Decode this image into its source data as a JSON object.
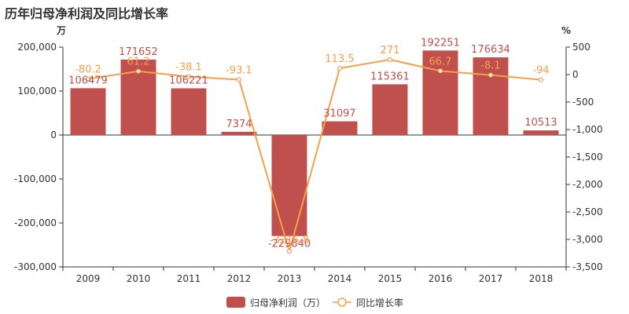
{
  "chart_data": {
    "type": "bar+line",
    "title": "历年归母净利润及同比增长率",
    "y_left_unit": "万",
    "y_right_unit": "%",
    "categories": [
      "2009",
      "2010",
      "2011",
      "2012",
      "2013",
      "2014",
      "2015",
      "2016",
      "2017",
      "2018"
    ],
    "y_left": {
      "min": -300000,
      "max": 200000,
      "ticks": [
        200000,
        100000,
        0,
        -100000,
        -200000,
        -300000
      ],
      "tick_labels": [
        "200,000",
        "100,000",
        "0",
        "-100,000",
        "-200,000",
        "-300,000"
      ]
    },
    "y_right": {
      "min": -3500,
      "max": 500,
      "ticks": [
        500,
        0,
        -500,
        -1000,
        -1500,
        -2000,
        -2500,
        -3000,
        -3500
      ],
      "tick_labels": [
        "500",
        "0",
        "-500",
        "-1,000",
        "-1,500",
        "-2,000",
        "-2,500",
        "-3,000",
        "-3,500"
      ]
    },
    "series": [
      {
        "name": "归母净利润（万）",
        "type": "bar",
        "color": "#c0504d",
        "values": [
          106479,
          171652,
          106221,
          7374,
          -229840,
          31097,
          115361,
          192251,
          176634,
          10513
        ],
        "labels": [
          "106479",
          "171652",
          "106221",
          "7374",
          "-229840",
          "31097",
          "115361",
          "192251",
          "176634",
          "10513"
        ]
      },
      {
        "name": "同比增长率",
        "type": "line",
        "color": "#f4a04b",
        "values": [
          -80.2,
          61.2,
          -38.1,
          -93.1,
          -3216.8,
          113.5,
          271,
          66.7,
          -8.1,
          -94
        ],
        "labels": [
          "-80.2",
          "61.2",
          "-38.1",
          "-93.1",
          "-3216.8",
          "113.5",
          "271",
          "66.7",
          "-8.1",
          "-94"
        ]
      }
    ]
  }
}
